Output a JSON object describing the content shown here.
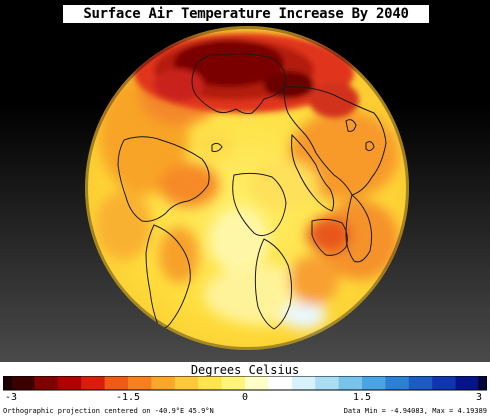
{
  "title": "Surface Air Temperature Increase By 2040",
  "legend": {
    "title": "Degrees Celsius",
    "ticks": [
      "-3",
      "-1.5",
      "0",
      "1.5",
      "3"
    ],
    "tick_values": [
      -3,
      -1.5,
      0,
      1.5,
      3
    ],
    "range": [
      -3,
      3
    ],
    "colors": [
      "#3a0000",
      "#800000",
      "#b00000",
      "#d81e0a",
      "#ef5a14",
      "#f77f1c",
      "#fba82a",
      "#fdc83a",
      "#fee54e",
      "#fff57a",
      "#ffffc8",
      "#ffffff",
      "#d6f2fb",
      "#a8ddf4",
      "#77c3ec",
      "#4aa4e2",
      "#2c7fd3",
      "#1c5ac4",
      "#0f36b0",
      "#06148a"
    ]
  },
  "footer": {
    "projection": "Orthographic projection centered on -40.9°E 45.9°N",
    "data_range": "Data Min = -4.94083, Max = 4.19389"
  }
}
